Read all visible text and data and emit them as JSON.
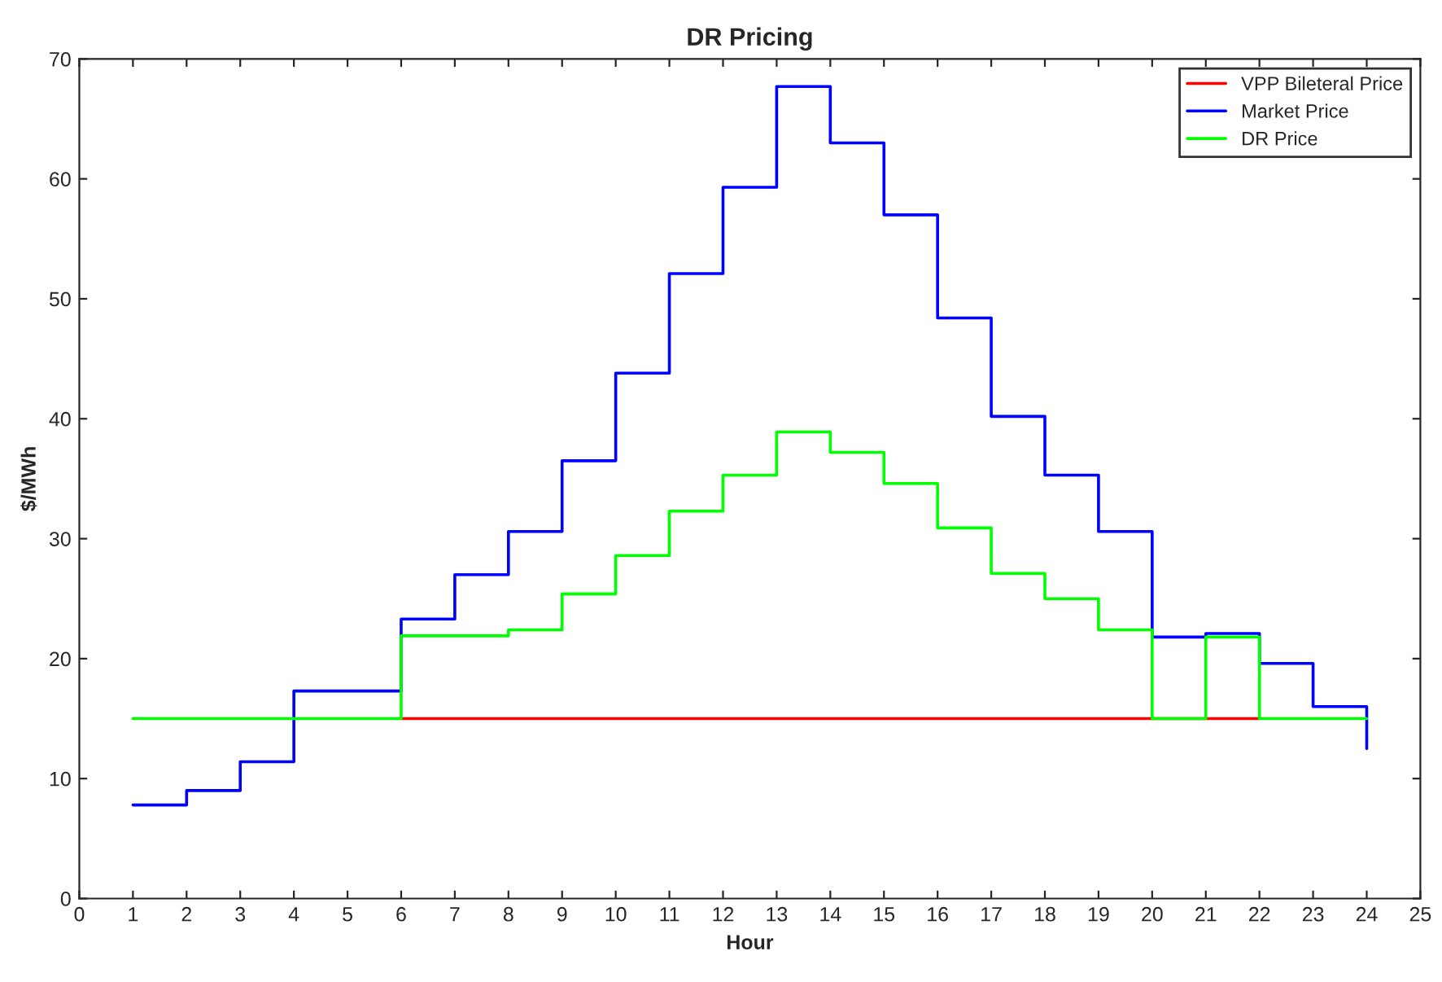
{
  "chart_data": {
    "type": "step",
    "title": "DR Pricing",
    "xlabel": "Hour",
    "ylabel": "$/MWh",
    "x": [
      1,
      2,
      3,
      4,
      5,
      6,
      7,
      8,
      9,
      10,
      11,
      12,
      13,
      14,
      15,
      16,
      17,
      18,
      19,
      20,
      21,
      22,
      23,
      24
    ],
    "series": [
      {
        "name": "VPP Bileteral Price",
        "color": "#ff0000",
        "values": [
          null,
          null,
          null,
          null,
          null,
          15,
          15,
          15,
          15,
          15,
          15,
          15,
          15,
          15,
          15,
          15,
          15,
          15,
          15,
          15,
          15,
          15,
          null,
          null
        ]
      },
      {
        "name": "Market Price",
        "color": "#0000ff",
        "values": [
          7.8,
          9,
          11.4,
          17.3,
          17.3,
          23.3,
          27,
          30.6,
          36.5,
          43.8,
          52.1,
          59.3,
          67.7,
          63,
          57,
          48.4,
          40.2,
          35.3,
          30.6,
          21.8,
          22.1,
          19.6,
          16,
          12.5
        ]
      },
      {
        "name": "DR Price",
        "color": "#00ff00",
        "values": [
          15,
          15,
          15,
          15,
          15,
          21.9,
          21.9,
          22.4,
          25.4,
          28.6,
          32.3,
          35.3,
          38.9,
          37.2,
          34.6,
          30.9,
          27.1,
          25,
          22.4,
          15,
          21.8,
          15,
          15,
          15
        ]
      }
    ],
    "xlim": [
      0,
      25
    ],
    "xticks": [
      0,
      1,
      2,
      3,
      4,
      5,
      6,
      7,
      8,
      9,
      10,
      11,
      12,
      13,
      14,
      15,
      16,
      17,
      18,
      19,
      20,
      21,
      22,
      23,
      24,
      25
    ],
    "ylim": [
      0,
      70
    ],
    "yticks": [
      0,
      10,
      20,
      30,
      40,
      50,
      60,
      70
    ],
    "legend": "top right"
  }
}
